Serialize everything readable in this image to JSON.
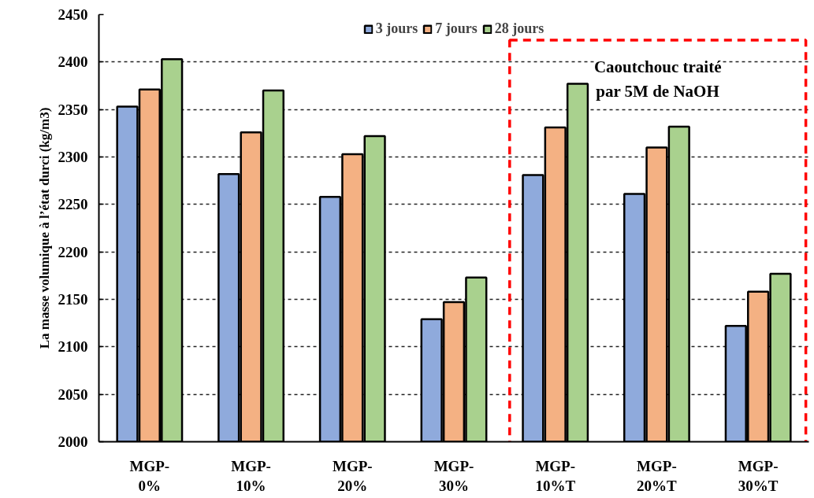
{
  "chart_data": {
    "type": "bar",
    "ylabel": "La masse volumique à l’état durci (kg/m3)",
    "categories": [
      "MGP-\n0%",
      "MGP-\n10%",
      "MGP-\n20%",
      "MGP-\n30%",
      "MGP-\n10%T",
      "MGP-\n20%T",
      "MGP-\n30%T"
    ],
    "series": [
      {
        "name": "3 jours",
        "color": "#8faadc",
        "values": [
          2353,
          2282,
          2258,
          2129,
          2281,
          2261,
          2122
        ]
      },
      {
        "name": "7 jours",
        "color": "#f4b183",
        "values": [
          2371,
          2326,
          2303,
          2147,
          2331,
          2310,
          2158
        ]
      },
      {
        "name": "28 jours",
        "color": "#a9d18e",
        "values": [
          2403,
          2370,
          2322,
          2173,
          2377,
          2332,
          2177
        ]
      }
    ],
    "ylim": [
      2000,
      2450
    ],
    "yticks": [
      2000,
      2050,
      2100,
      2150,
      2200,
      2250,
      2300,
      2350,
      2400,
      2450
    ],
    "grid": "y",
    "legend": "top",
    "annotations": [
      "Caoutchouc traité\npar 5M de NaOH"
    ]
  }
}
